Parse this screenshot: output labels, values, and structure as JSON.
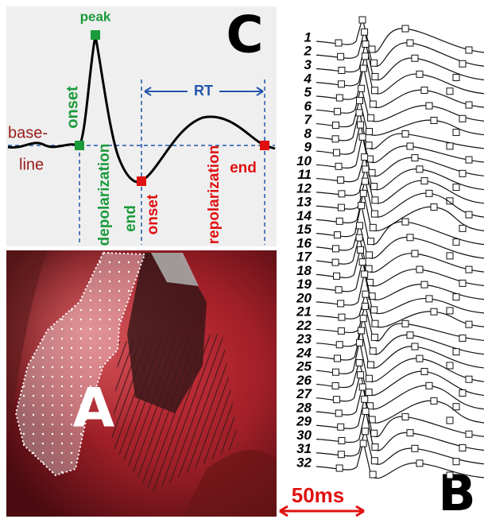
{
  "panel_c": {
    "label": "C",
    "peak": "peak",
    "onset_depol": "onset",
    "depolarization": "depolarization",
    "baseline_1": "base-",
    "baseline_2": "line",
    "rt": "RT",
    "end_depol": "end",
    "onset_repol": "onset",
    "repolarization": "repolarization",
    "end_repol": "end"
  },
  "panel_a": {
    "label": "A"
  },
  "panel_b": {
    "label": "B",
    "scale_bar": "50ms",
    "trace_labels": [
      "1",
      "2",
      "3",
      "4",
      "5",
      "6",
      "7",
      "8",
      "9",
      "10",
      "11",
      "12",
      "13",
      "14",
      "15",
      "16",
      "17",
      "18",
      "19",
      "20",
      "21",
      "22",
      "23",
      "24",
      "25",
      "26",
      "27",
      "28",
      "29",
      "30",
      "31",
      "32"
    ]
  }
}
